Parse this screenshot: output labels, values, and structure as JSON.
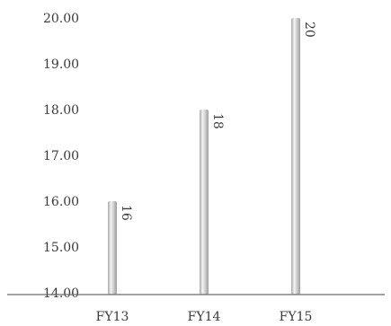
{
  "chart_data": {
    "type": "bar",
    "categories": [
      "FY13",
      "FY14",
      "FY15"
    ],
    "values": [
      16,
      18,
      20
    ],
    "value_labels": [
      "16",
      "18",
      "20"
    ],
    "y_ticks": [
      "14.00",
      "15.00",
      "16.00",
      "17.00",
      "18.00",
      "19.00",
      "20.00"
    ],
    "ylim": [
      14,
      20
    ],
    "title": "",
    "xlabel": "",
    "ylabel": "",
    "grid": false,
    "legend": "none",
    "bar_color": "#c8c8c8",
    "axis_color": "#6b6b6b"
  }
}
